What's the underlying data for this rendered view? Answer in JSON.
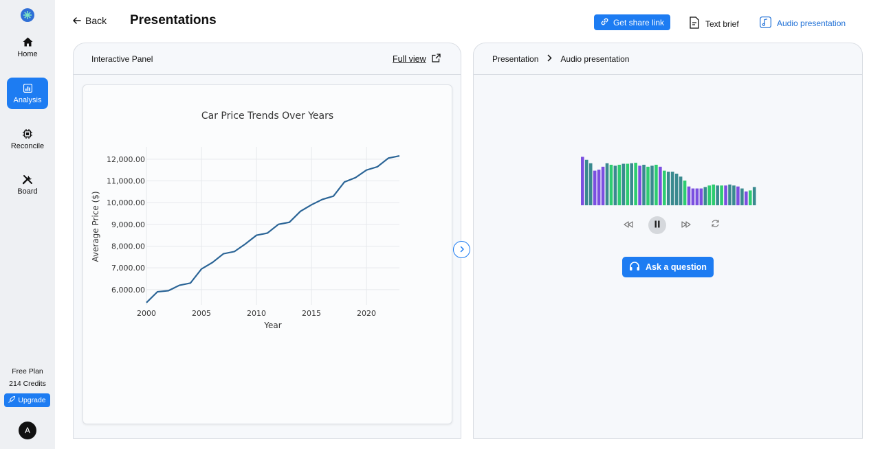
{
  "sidebar": {
    "items": [
      {
        "label": "Home",
        "icon": "home-icon"
      },
      {
        "label": "Analysis",
        "icon": "bar-chart-icon",
        "active": true
      },
      {
        "label": "Reconcile",
        "icon": "chip-icon"
      },
      {
        "label": "Board",
        "icon": "tools-icon"
      }
    ],
    "plan": "Free Plan",
    "credits": "214 Credits",
    "upgrade_label": "Upgrade",
    "avatar_letter": "A"
  },
  "header": {
    "back_label": "Back",
    "title": "Presentations",
    "share_label": "Get share link",
    "text_brief_label": "Text brief",
    "audio_label": "Audio presentation"
  },
  "left_panel": {
    "title": "Interactive Panel",
    "full_view_label": "Full view"
  },
  "right_panel": {
    "crumb_1": "Presentation",
    "crumb_2": "Audio presentation",
    "ask_label": "Ask a question",
    "waveform_colors": [
      "#7b4fe0",
      "#3a8a8f",
      "#2ecc71"
    ],
    "waveform_levels": [
      0.98,
      0.92,
      0.85,
      0.7,
      0.72,
      0.78,
      0.85,
      0.82,
      0.8,
      0.82,
      0.84,
      0.84,
      0.85,
      0.86,
      0.8,
      0.82,
      0.78,
      0.8,
      0.82,
      0.78,
      0.7,
      0.68,
      0.68,
      0.64,
      0.58,
      0.5,
      0.38,
      0.34,
      0.34,
      0.34,
      0.37,
      0.4,
      0.42,
      0.4,
      0.4,
      0.4,
      0.42,
      0.4,
      0.38,
      0.34,
      0.28,
      0.3,
      0.37
    ]
  },
  "colors": {
    "accent": "#1d7cf2",
    "line": "#2a6496"
  },
  "chart_data": {
    "type": "line",
    "title": "Car Price Trends Over Years",
    "xlabel": "Year",
    "ylabel": "Average Price ($)",
    "x": [
      2000,
      2001,
      2002,
      2003,
      2004,
      2005,
      2006,
      2007,
      2008,
      2009,
      2010,
      2011,
      2012,
      2013,
      2014,
      2015,
      2016,
      2017,
      2018,
      2019,
      2020,
      2021,
      2022,
      2023
    ],
    "values": [
      5400,
      5900,
      5950,
      6200,
      6300,
      6950,
      7250,
      7650,
      7750,
      8100,
      8500,
      8600,
      9000,
      9100,
      9600,
      9900,
      10150,
      10300,
      10950,
      11150,
      11500,
      11650,
      12050,
      12150
    ],
    "xticks": [
      "2000",
      "2005",
      "2010",
      "2015",
      "2020"
    ],
    "yticks": [
      "6,000.00",
      "7,000.00",
      "8,000.00",
      "9,000.00",
      "10,000.00",
      "11,000.00",
      "12,000.00"
    ],
    "xlim": [
      2000,
      2023
    ],
    "ylim": [
      5300,
      12500
    ],
    "grid": true
  }
}
